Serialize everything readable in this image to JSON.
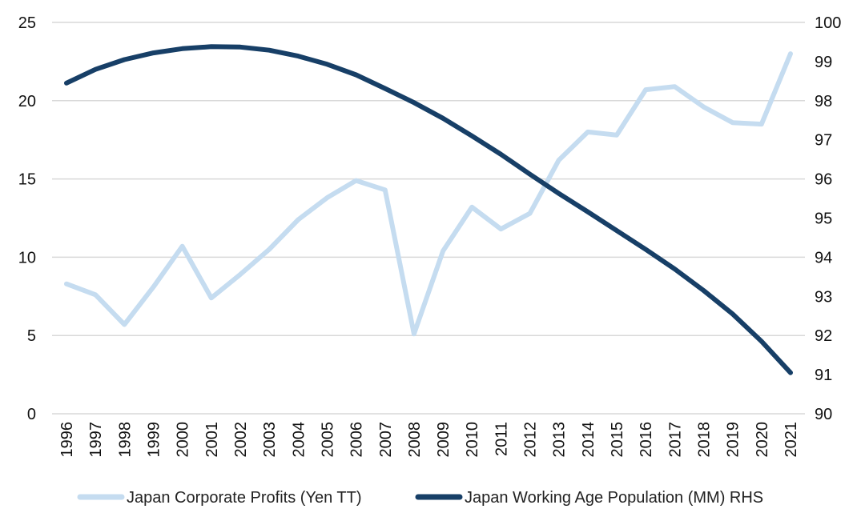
{
  "chart_data": {
    "type": "line",
    "title": "",
    "x": [
      "1996",
      "1997",
      "1998",
      "1999",
      "2000",
      "2001",
      "2002",
      "2003",
      "2004",
      "2005",
      "2006",
      "2007",
      "2008",
      "2009",
      "2010",
      "2011",
      "2012",
      "2013",
      "2014",
      "2015",
      "2016",
      "2017",
      "2018",
      "2019",
      "2020",
      "2021"
    ],
    "series": [
      {
        "name": "Japan Corporate Profits (Yen TT)",
        "axis": "left",
        "color": "#c5dcf0",
        "values": [
          8.3,
          7.6,
          5.7,
          8.1,
          10.7,
          7.4,
          8.9,
          10.5,
          12.4,
          13.8,
          14.9,
          14.3,
          5.1,
          10.4,
          13.2,
          11.8,
          12.8,
          16.2,
          18.0,
          17.8,
          20.7,
          20.9,
          19.6,
          18.6,
          18.5,
          23.0
        ]
      },
      {
        "name": "Japan Working Age Population (MM) RHS",
        "axis": "right",
        "color": "#173f67",
        "values": [
          98.45,
          98.8,
          99.05,
          99.22,
          99.33,
          99.38,
          99.37,
          99.29,
          99.14,
          98.93,
          98.66,
          98.31,
          97.95,
          97.55,
          97.1,
          96.63,
          96.12,
          95.63,
          95.16,
          94.68,
          94.2,
          93.7,
          93.15,
          92.55,
          91.85,
          91.05
        ]
      }
    ],
    "yleft": {
      "lim": [
        0,
        25
      ],
      "ticks": [
        "0",
        "5",
        "10",
        "15",
        "20",
        "25"
      ]
    },
    "yright": {
      "lim": [
        90,
        100
      ],
      "ticks": [
        "90",
        "91",
        "92",
        "93",
        "94",
        "95",
        "96",
        "97",
        "98",
        "99",
        "100"
      ]
    },
    "grid": true,
    "legend_position": "bottom"
  }
}
